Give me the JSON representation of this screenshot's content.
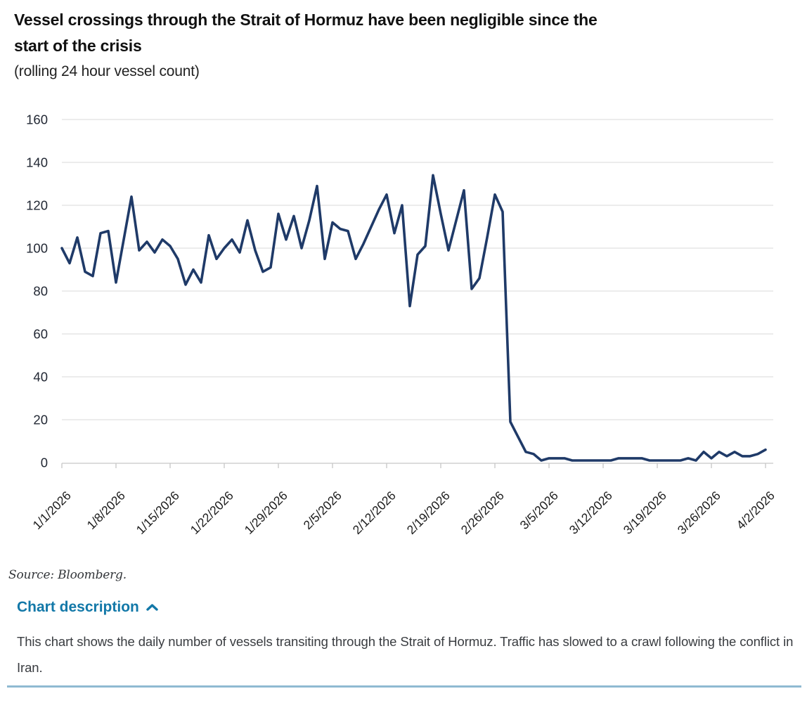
{
  "title": "Vessel crossings through the Strait of Hormuz have been negligible since the start of the crisis",
  "subtitle": "(rolling 24 hour vessel count)",
  "chart_data": {
    "type": "line",
    "title": "Vessel crossings through the Strait of Hormuz have been negligible since the start of the crisis",
    "subtitle": "(rolling 24 hour vessel count)",
    "x_frequency": "daily",
    "x_range": [
      "1/1/2026",
      "4/2/2026"
    ],
    "x_tick_labels": [
      "1/1/2026",
      "1/8/2026",
      "1/15/2026",
      "1/22/2026",
      "1/29/2026",
      "2/5/2026",
      "2/12/2026",
      "2/19/2026",
      "2/26/2026",
      "3/5/2026",
      "3/12/2026",
      "3/19/2026",
      "3/26/2026",
      "4/2/2026"
    ],
    "x_ticks_every_days": 7,
    "ylim": [
      0,
      160
    ],
    "yticks": [
      0,
      20,
      40,
      60,
      80,
      100,
      120,
      140,
      160
    ],
    "grid": "horizontal",
    "legend": "none",
    "line_color": "#1f3a68",
    "series": [
      {
        "name": "Rolling 24 hour vessel count",
        "values": [
          100,
          93,
          105,
          89,
          87,
          107,
          108,
          84,
          104,
          124,
          99,
          103,
          98,
          104,
          101,
          95,
          83,
          90,
          84,
          106,
          95,
          100,
          104,
          98,
          113,
          99,
          89,
          91,
          116,
          104,
          115,
          100,
          113,
          129,
          95,
          112,
          109,
          108,
          95,
          102,
          110,
          118,
          125,
          107,
          120,
          73,
          97,
          101,
          134,
          116,
          99,
          113,
          127,
          81,
          86,
          105,
          125,
          117,
          19,
          12,
          5,
          4,
          1,
          2,
          2,
          2,
          1,
          1,
          1,
          1,
          1,
          1,
          2,
          2,
          2,
          2,
          1,
          1,
          1,
          1,
          1,
          2,
          1,
          5,
          2,
          5,
          3,
          5,
          3,
          3,
          4,
          6
        ]
      }
    ]
  },
  "source_label": "Source: Bloomberg.",
  "chart_description": {
    "toggle_label": "Chart description",
    "state": "expanded",
    "chevron_icon": "chevron-up-icon",
    "text": "This chart shows the daily number of vessels transiting through the Strait of Hormuz. Traffic has slowed to a crawl following the conflict in Iran."
  },
  "colors": {
    "line_navy": "#1f3a68",
    "accent_teal": "#1278a8",
    "divider_blue": "#8fbad2",
    "gridline_gray": "#d9d9d9"
  }
}
